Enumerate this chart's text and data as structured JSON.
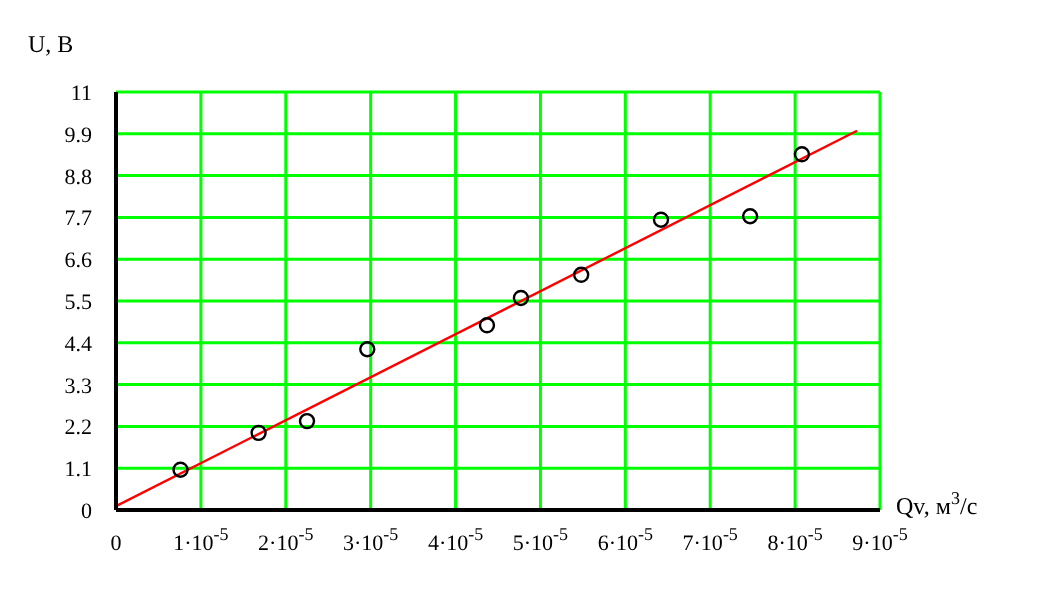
{
  "chart_data": {
    "type": "scatter",
    "xlabel": "Qv, м$^{3}$/с",
    "ylabel": "U, B",
    "series": [
      {
        "color": "#000000",
        "marker": "circle",
        "x": [
          7.6e-06,
          1.68e-05,
          2.25e-05,
          2.96e-05,
          4.37e-05,
          4.77e-05,
          5.48e-05,
          6.42e-05,
          7.47e-05,
          8.08e-05
        ],
        "values": [
          1.06,
          2.03,
          2.34,
          4.23,
          4.86,
          5.58,
          6.19,
          7.64,
          7.73,
          9.36
        ]
      },
      {
        "type": "line",
        "color": "#ff0000",
        "marker": "none",
        "line_style": "solid",
        "x": [
          0,
          8.73e-05
        ],
        "values": [
          0.1,
          9.98
        ]
      }
    ],
    "xlim": [
      0,
      9e-05
    ],
    "xticks": [
      {
        "value": 0,
        "label": "0"
      },
      {
        "value": 1e-05,
        "label": "1·10$^{-5}$"
      },
      {
        "value": 2e-05,
        "label": "2·10$^{-5}$"
      },
      {
        "value": 3e-05,
        "label": "3·10$^{-5}$"
      },
      {
        "value": 4e-05,
        "label": "4·10$^{-5}$"
      },
      {
        "value": 5e-05,
        "label": "5·10$^{-5}$"
      },
      {
        "value": 6e-05,
        "label": "6·10$^{-5}$"
      },
      {
        "value": 7e-05,
        "label": "7·10$^{-5}$"
      },
      {
        "value": 8e-05,
        "label": "8·10$^{-5}$"
      },
      {
        "value": 9e-05,
        "label": "9·10$^{-5}$"
      }
    ],
    "ylim": [
      0,
      11
    ],
    "yticks": [
      0,
      1.1,
      2.2,
      3.3,
      4.4,
      5.5,
      6.6,
      7.7,
      8.8,
      9.9,
      11
    ],
    "grid": true
  }
}
